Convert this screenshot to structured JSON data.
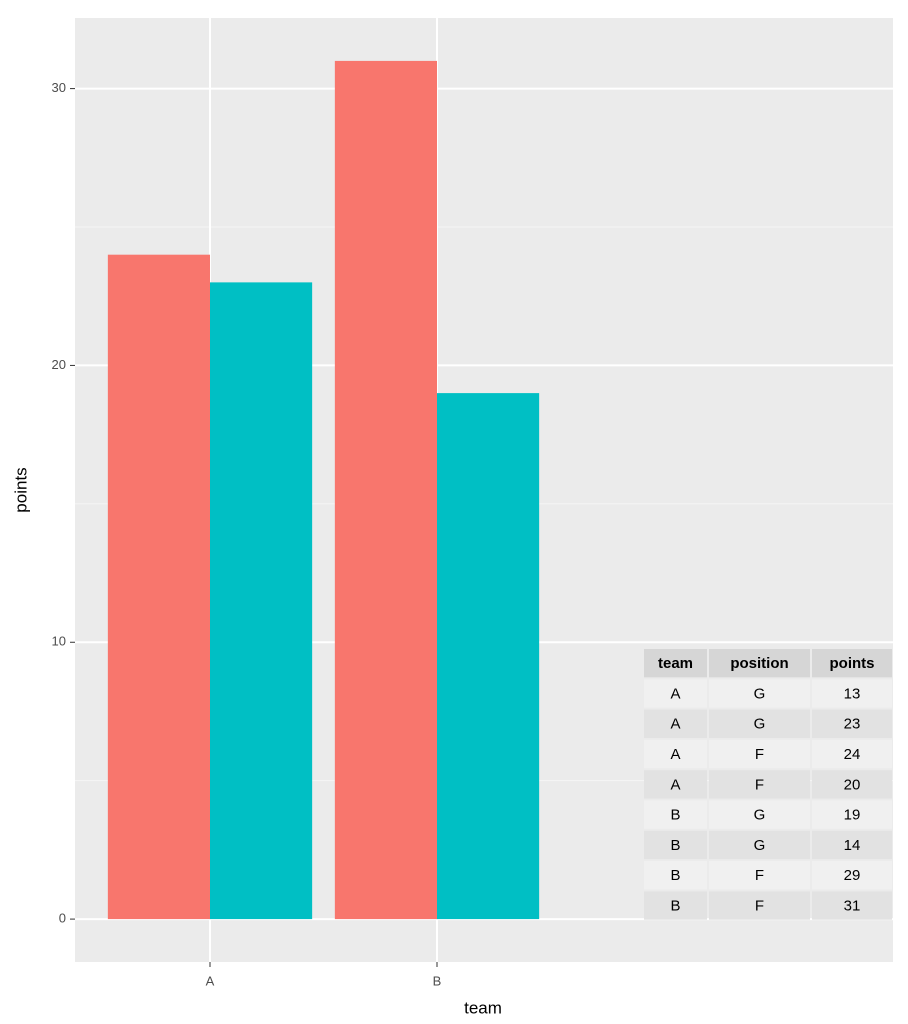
{
  "chart_data": {
    "type": "bar",
    "x_label": "team",
    "y_label": "points",
    "categories": [
      "A",
      "B"
    ],
    "series": [
      {
        "color": "#f8766d",
        "values": [
          24,
          31
        ]
      },
      {
        "color": "#00bfc4",
        "values": [
          23,
          19
        ]
      }
    ],
    "ylim": [
      -1.55,
      32.55
    ],
    "yticks": [
      0,
      10,
      20,
      30
    ],
    "yminorticks": [
      5,
      15,
      25
    ],
    "grid": true,
    "table": {
      "header": [
        "team",
        "position",
        "points"
      ],
      "rows": [
        [
          "A",
          "G",
          "13"
        ],
        [
          "A",
          "G",
          "23"
        ],
        [
          "A",
          "F",
          "24"
        ],
        [
          "A",
          "F",
          "20"
        ],
        [
          "B",
          "G",
          "19"
        ],
        [
          "B",
          "G",
          "14"
        ],
        [
          "B",
          "F",
          "29"
        ],
        [
          "B",
          "F",
          "31"
        ]
      ]
    }
  }
}
